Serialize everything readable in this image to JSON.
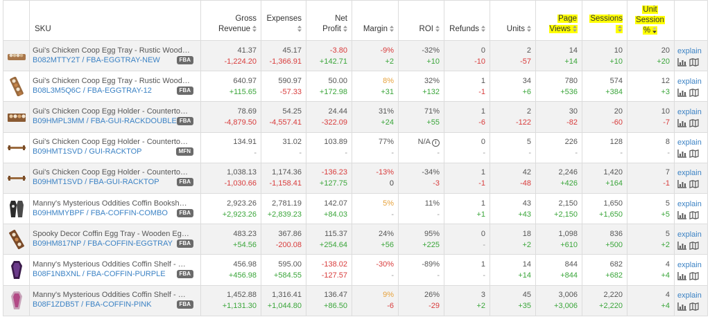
{
  "headers": {
    "sku": "SKU",
    "gross_revenue": [
      "Gross",
      "Revenue"
    ],
    "expenses": "Expenses",
    "net_profit": [
      "Net",
      "Profit"
    ],
    "margin": "Margin",
    "roi": "ROI",
    "refunds": "Refunds",
    "units": "Units",
    "page_views": [
      "Page",
      "Views"
    ],
    "sessions": "Sessions",
    "unit_session": [
      "Unit",
      "Session",
      "%"
    ]
  },
  "explain_label": "explain",
  "rows": [
    {
      "title": "Gui's Chicken Coop Egg Tray - Rustic Wooden...",
      "asin": "B082MTTY2T",
      "sku": "FBA-EGGTRAY-NEW",
      "badge": "FBA",
      "thumb": "egg-tray",
      "gross": [
        "41.37",
        "-1,224.20"
      ],
      "expenses": [
        "45.17",
        "-1,366.91"
      ],
      "net": [
        "-3.80",
        "+142.71"
      ],
      "margin": [
        "-9%",
        "+2"
      ],
      "roi": [
        "-32%",
        "+10"
      ],
      "refunds": [
        "0",
        "-10"
      ],
      "units": [
        "2",
        "-57"
      ],
      "views": [
        "14",
        "+14"
      ],
      "sessions": [
        "10",
        "+10"
      ],
      "usp": [
        "20",
        "+20"
      ]
    },
    {
      "title": "Gui's Chicken Coop Egg Tray - Rustic Wooden...",
      "asin": "B08L3M5Q6C",
      "sku": "FBA-EGGTRAY-12",
      "badge": "FBA",
      "thumb": "egg-tray-diag",
      "gross": [
        "640.97",
        "+115.65"
      ],
      "expenses": [
        "590.97",
        "-57.33"
      ],
      "net": [
        "50.00",
        "+172.98"
      ],
      "margin": [
        "8%",
        "+31"
      ],
      "roi": [
        "32%",
        "+132"
      ],
      "refunds": [
        "1",
        "-1"
      ],
      "units": [
        "34",
        "+6"
      ],
      "views": [
        "780",
        "+536"
      ],
      "sessions": [
        "574",
        "+384"
      ],
      "usp": [
        "12",
        "+3"
      ]
    },
    {
      "title": "Gui's Chicken Coop Egg Holder - Countertop ...",
      "asin": "B09HMPL3MM",
      "sku": "FBA-GUI-RACKDOUBLE",
      "badge": "FBA",
      "thumb": "egg-holder",
      "gross": [
        "78.69",
        "-4,879.50"
      ],
      "expenses": [
        "54.25",
        "-4,557.41"
      ],
      "net": [
        "24.44",
        "-322.09"
      ],
      "margin": [
        "31%",
        "+24"
      ],
      "roi": [
        "71%",
        "+55"
      ],
      "refunds": [
        "1",
        "-6"
      ],
      "units": [
        "2",
        "-122"
      ],
      "views": [
        "30",
        "-82"
      ],
      "sessions": [
        "20",
        "-60"
      ],
      "usp": [
        "10",
        "-7"
      ]
    },
    {
      "title": "Gui's Chicken Coop Egg Holder - Countertop ...",
      "asin": "B09HMT1SVD",
      "sku": "GUI-RACKTOP",
      "badge": "MFN",
      "thumb": "rack",
      "gross": [
        "134.91",
        "-"
      ],
      "expenses": [
        "31.02",
        "-"
      ],
      "net": [
        "103.89",
        "-"
      ],
      "margin": [
        "77%",
        "-"
      ],
      "roi": [
        "N/A",
        "-"
      ],
      "refunds": [
        "0",
        "-"
      ],
      "units": [
        "5",
        "-"
      ],
      "views": [
        "226",
        "-"
      ],
      "sessions": [
        "128",
        "-"
      ],
      "usp": [
        "8",
        "-"
      ]
    },
    {
      "title": "Gui's Chicken Coop Egg Holder - Countertop ...",
      "asin": "B09HMT1SVD",
      "sku": "FBA-GUI-RACKTOP",
      "badge": "FBA",
      "thumb": "rack",
      "gross": [
        "1,038.13",
        "-1,030.66"
      ],
      "expenses": [
        "1,174.36",
        "-1,158.41"
      ],
      "net": [
        "-136.23",
        "+127.75"
      ],
      "margin": [
        "-13%",
        "0"
      ],
      "roi": [
        "-34%",
        "-3"
      ],
      "refunds": [
        "1",
        "-1"
      ],
      "units": [
        "42",
        "-48"
      ],
      "views": [
        "2,246",
        "+426"
      ],
      "sessions": [
        "1,420",
        "+164"
      ],
      "usp": [
        "7",
        "-1"
      ]
    },
    {
      "title": "Manny's Mysterious Oddities Coffin Bookshelf ...",
      "asin": "B09HMMYBPF",
      "sku": "FBA-COFFIN-COMBO",
      "badge": "FBA",
      "thumb": "coffin-combo",
      "gross": [
        "2,923.26",
        "+2,923.26"
      ],
      "expenses": [
        "2,781.19",
        "+2,839.23"
      ],
      "net": [
        "142.07",
        "+84.03"
      ],
      "margin": [
        "5%",
        "-"
      ],
      "roi": [
        "11%",
        "-"
      ],
      "refunds": [
        "1",
        "+1"
      ],
      "units": [
        "43",
        "+43"
      ],
      "views": [
        "2,150",
        "+2,150"
      ],
      "sessions": [
        "1,650",
        "+1,650"
      ],
      "usp": [
        "5",
        "+5"
      ]
    },
    {
      "title": "Spooky Decor Coffin Egg Tray - Wooden Egg ...",
      "asin": "B09HM817NP",
      "sku": "FBA-COFFIN-EGGTRAY",
      "badge": "FBA",
      "thumb": "coffin-tray",
      "gross": [
        "483.23",
        "+54.56"
      ],
      "expenses": [
        "367.86",
        "-200.08"
      ],
      "net": [
        "115.37",
        "+254.64"
      ],
      "margin": [
        "24%",
        "+56"
      ],
      "roi": [
        "95%",
        "+225"
      ],
      "refunds": [
        "0",
        "-"
      ],
      "units": [
        "18",
        "+2"
      ],
      "views": [
        "1,098",
        "+610"
      ],
      "sessions": [
        "836",
        "+500"
      ],
      "usp": [
        "5",
        "+2"
      ]
    },
    {
      "title": "Manny's Mysterious Oddities Coffin Shelf - Sp...",
      "asin": "B08F1NBXNL",
      "sku": "FBA-COFFIN-PURPLE",
      "badge": "FBA",
      "thumb": "coffin-purple",
      "gross": [
        "456.98",
        "+456.98"
      ],
      "expenses": [
        "595.00",
        "+584.55"
      ],
      "net": [
        "-138.02",
        "-127.57"
      ],
      "margin": [
        "-30%",
        "-"
      ],
      "roi": [
        "-89%",
        "-"
      ],
      "refunds": [
        "1",
        "-"
      ],
      "units": [
        "14",
        "+14"
      ],
      "views": [
        "844",
        "+844"
      ],
      "sessions": [
        "682",
        "+682"
      ],
      "usp": [
        "4",
        "+4"
      ]
    },
    {
      "title": "Manny's Mysterious Oddities Coffin Shelf - Sp...",
      "asin": "B08F1ZDB5T",
      "sku": "FBA-COFFIN-PINK",
      "badge": "FBA",
      "thumb": "coffin-pink",
      "gross": [
        "1,452.88",
        "+1,131.30"
      ],
      "expenses": [
        "1,316.41",
        "+1,044.80"
      ],
      "net": [
        "136.47",
        "+86.50"
      ],
      "margin": [
        "9%",
        "-6"
      ],
      "roi": [
        "26%",
        "-29"
      ],
      "refunds": [
        "3",
        "+2"
      ],
      "units": [
        "45",
        "+35"
      ],
      "views": [
        "3,006",
        "+3,006"
      ],
      "sessions": [
        "2,220",
        "+2,220"
      ],
      "usp": [
        "4",
        "+4"
      ]
    }
  ],
  "colors": {
    "positive": "#3aa53a",
    "negative": "#d83b3b",
    "warning": "#e6a23c",
    "link": "#3b82c4",
    "highlight": "#ffff00"
  }
}
